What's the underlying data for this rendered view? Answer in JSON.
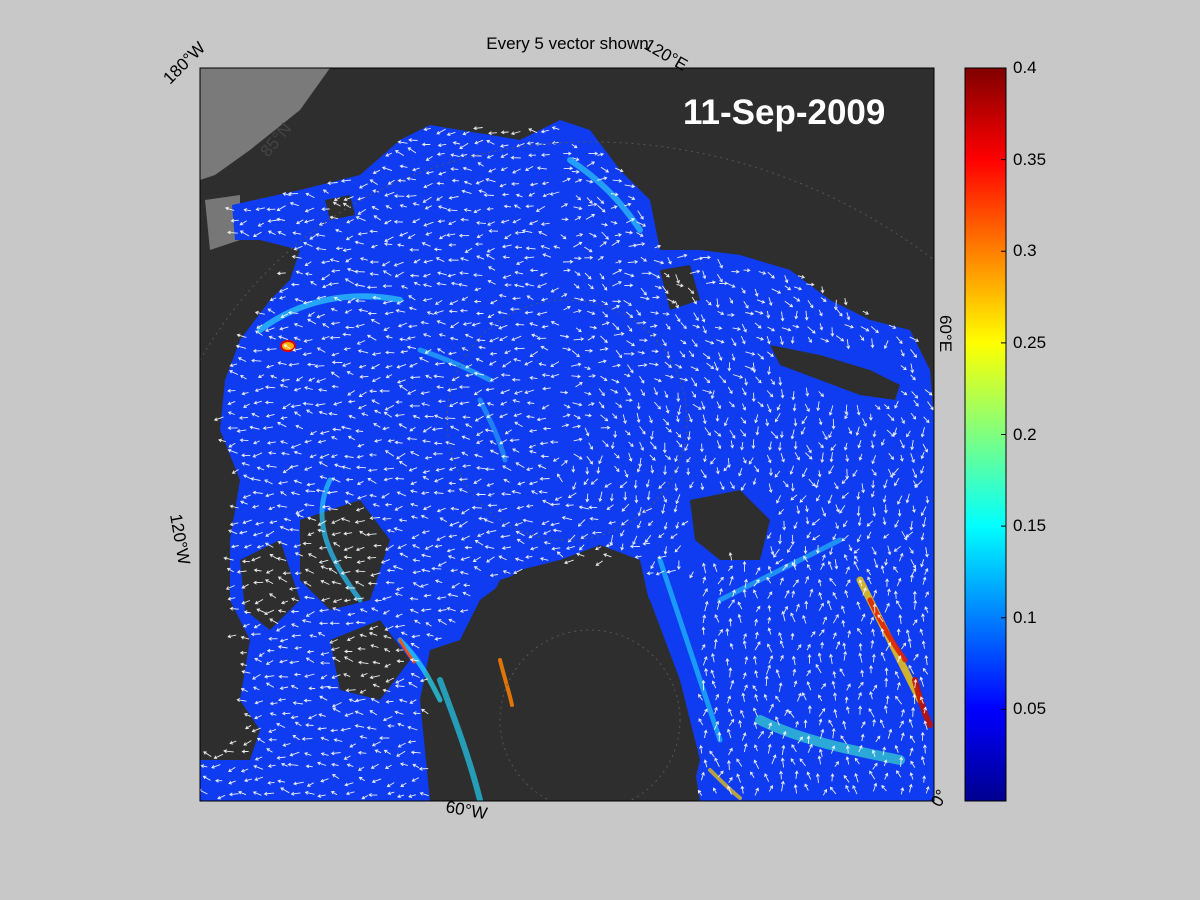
{
  "title": "Every 5 vector shown",
  "date": "11-Sep-2009",
  "coordinate_labels": {
    "lon_180w": "180°W",
    "lon_120e": "120°E",
    "lat_85n": "85°N",
    "lon_60e": "60°E",
    "lon_120w": "120°W",
    "lon_60w": "60°W",
    "lon_0": "0°"
  },
  "colorbar": {
    "colormap": "jet",
    "min": 0,
    "max": 0.4,
    "ticks": [
      "0.4",
      "0.35",
      "0.3",
      "0.25",
      "0.2",
      "0.15",
      "0.1",
      "0.05"
    ],
    "tick_values": [
      0.4,
      0.35,
      0.3,
      0.25,
      0.2,
      0.15,
      0.1,
      0.05
    ]
  },
  "colors": {
    "figure_background": "#c8c8c8",
    "land": "#2e2e2e",
    "ice_low_speed": "#0a2ff0",
    "vectors": "#ffffff",
    "date_text": "#ffffff"
  }
}
